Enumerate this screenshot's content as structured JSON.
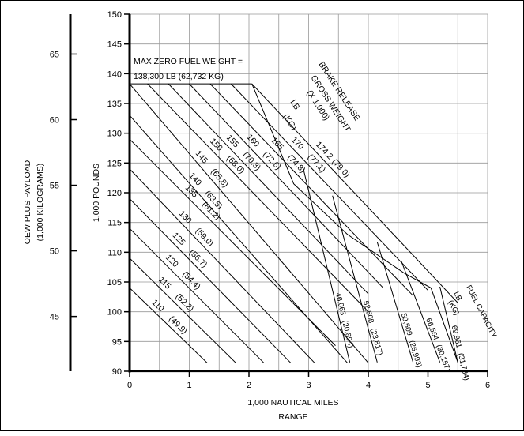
{
  "chart_data": {
    "type": "line",
    "x_axis": {
      "label": "1,000 NAUTICAL MILES",
      "sublabel": "RANGE",
      "range": [
        0,
        6
      ],
      "ticks": [
        0,
        1,
        2,
        3,
        4,
        5,
        6
      ]
    },
    "y_axis": {
      "label": "1,000 POUNDS",
      "range": [
        90,
        150
      ],
      "ticks": [
        90,
        95,
        100,
        105,
        110,
        115,
        120,
        125,
        130,
        135,
        140,
        145,
        150
      ]
    },
    "y2_axis": {
      "label": "OEW PLUS PAYLOAD",
      "sublabel": "(1,000 KILOGRAMS)",
      "ticks": [
        45,
        50,
        55,
        60,
        65
      ]
    },
    "grid": true,
    "max_zero_fuel_weight": {
      "label1": "MAX ZERO FUEL WEIGHT =",
      "label2": "138,300 LB (62,732 KG)",
      "value": 138.3
    },
    "brake_release_title": [
      "BRAKE RELEASE",
      "GROSS WEIGHT",
      "(X 1,000)",
      "LB",
      "(KG)"
    ],
    "fuel_capacity_title": [
      "FUEL CAPACITY",
      "LB",
      "(KG)"
    ],
    "series": [
      {
        "label": "110",
        "kg": "(49.9)",
        "points": [
          [
            0,
            104
          ],
          [
            1.3,
            91.4
          ]
        ]
      },
      {
        "label": "115",
        "kg": "(52.2)",
        "points": [
          [
            0,
            109
          ],
          [
            1.78,
            91.4
          ]
        ]
      },
      {
        "label": "120",
        "kg": "(54.4)",
        "points": [
          [
            0,
            114
          ],
          [
            2.25,
            91.4
          ]
        ]
      },
      {
        "label": "125",
        "kg": "(56.7)",
        "points": [
          [
            0,
            119
          ],
          [
            2.7,
            91.4
          ]
        ]
      },
      {
        "label": "130",
        "kg": "(59.0)",
        "points": [
          [
            0,
            124
          ],
          [
            3.1,
            91.4
          ]
        ]
      },
      {
        "label": "135",
        "kg": "(61.2)",
        "points": [
          [
            0,
            129
          ],
          [
            3.45,
            94.3
          ]
        ]
      },
      {
        "label": "140",
        "kg": "(63.5)",
        "points": [
          [
            0,
            133
          ],
          [
            3.65,
            91.4
          ]
        ]
      },
      {
        "label": "145",
        "kg": "(65.8)",
        "points": [
          [
            0,
            138.3
          ],
          [
            4.0,
            91.4
          ]
        ]
      },
      {
        "label": "150",
        "kg": "(68.0)",
        "points": [
          [
            0.3,
            138.3
          ],
          [
            4.0,
            100
          ]
        ]
      },
      {
        "label": "155",
        "kg": "(70.3)",
        "points": [
          [
            0.65,
            138.3
          ],
          [
            4.0,
            103
          ]
        ]
      },
      {
        "label": "160",
        "kg": "(72.6)",
        "points": [
          [
            1.0,
            138.3
          ],
          [
            4.25,
            104
          ]
        ]
      },
      {
        "label": "165",
        "kg": "(74.8)",
        "points": [
          [
            1.35,
            138.3
          ],
          [
            4.75,
            102.7
          ]
        ]
      },
      {
        "label": "170",
        "kg": "(77.1)",
        "points": [
          [
            1.7,
            138.3
          ],
          [
            5.0,
            103.6
          ]
        ]
      },
      {
        "label": "174.2",
        "kg": "(79.0)",
        "points": [
          [
            2.05,
            138.3
          ],
          [
            5.5,
            101.5
          ]
        ]
      }
    ],
    "fuel_capacity_lines": [
      {
        "lb": "46,063",
        "kg": "(20,894)",
        "points": [
          [
            2.9,
            124.5
          ],
          [
            3.69,
            91.5
          ]
        ]
      },
      {
        "lb": "52,508",
        "kg": "(23,817)",
        "points": [
          [
            3.4,
            119.5
          ],
          [
            4.15,
            91.5
          ]
        ]
      },
      {
        "lb": "59,509",
        "kg": "(26,993)",
        "points": [
          [
            4.15,
            111.7
          ],
          [
            4.75,
            91.5
          ]
        ]
      },
      {
        "lb": "66,564",
        "kg": "(30,157)",
        "points": [
          [
            4.55,
            108.6
          ],
          [
            5.2,
            91.5
          ]
        ]
      },
      {
        "lb": "69,961",
        "kg": "(31,734)",
        "points": [
          [
            5.2,
            104.2
          ],
          [
            5.5,
            91.5
          ]
        ]
      }
    ],
    "envelope": [
      [
        2.05,
        138.3
      ],
      [
        2.75,
        121.5
      ],
      [
        3.65,
        113
      ],
      [
        4.6,
        106.5
      ],
      [
        5.05,
        104
      ],
      [
        5.5,
        91.5
      ]
    ]
  }
}
